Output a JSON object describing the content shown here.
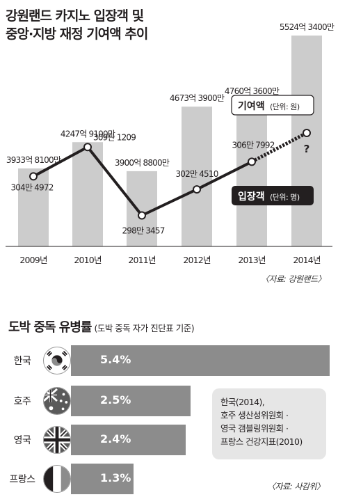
{
  "title_line1": "강원랜드 카지노 입장객 및",
  "title_line2": "중앙·지방 재정 기여액 추이",
  "chart_data": [
    {
      "type": "bar+line",
      "categories": [
        "2009년",
        "2010년",
        "2011년",
        "2012년",
        "2013년",
        "2014년"
      ],
      "series": [
        {
          "name": "기여액",
          "unit": "단위: 원",
          "values": [
            393381000000,
            424791000000,
            390088000000,
            467339000000,
            476036000000,
            552434000000
          ],
          "labels": [
            "3933억 8100만",
            "4247억 9100만",
            "3900억 8800만",
            "4673억 3900만",
            "4760억 3600만",
            "5524억 3400만"
          ]
        },
        {
          "name": "입장객",
          "unit": "단위: 명",
          "values": [
            3044972,
            3091209,
            2983457,
            3024510,
            3067992,
            null
          ],
          "labels": [
            "304만 4972",
            "309만 1209",
            "298만 3457",
            "302만 4510",
            "306만 7992",
            "?"
          ]
        }
      ],
      "legend_bar_name": "기여액",
      "legend_bar_unit": "(단위: 원)",
      "legend_line_name": "입장객",
      "legend_line_unit": "(단위: 명)",
      "unknown_mark": "?",
      "source": "〈자료: 강원랜드〉"
    },
    {
      "type": "bar",
      "orientation": "horizontal",
      "title": "도박 중독 유병률",
      "subtitle": "(도박 중독 자가 진단표 기준)",
      "categories": [
        "한국",
        "호주",
        "영국",
        "프랑스"
      ],
      "values": [
        5.4,
        2.5,
        2.4,
        1.3
      ],
      "labels": [
        "5.4%",
        "2.5%",
        "2.4%",
        "1.3%"
      ],
      "flag_icons": [
        "korea-flag-icon",
        "australia-flag-icon",
        "uk-flag-icon",
        "france-flag-icon"
      ],
      "note": [
        "한국(2014),",
        "호주 생산성위원회 ·",
        "영국 갬블링위원회 ·",
        "프랑스 건강지표(2010)"
      ],
      "source": "〈자료: 사감위〉"
    }
  ],
  "colors": {
    "bar": "#cccccc",
    "bar2": "#8c8c8c",
    "line": "#231f20",
    "note_bg": "#e6e6e6"
  }
}
